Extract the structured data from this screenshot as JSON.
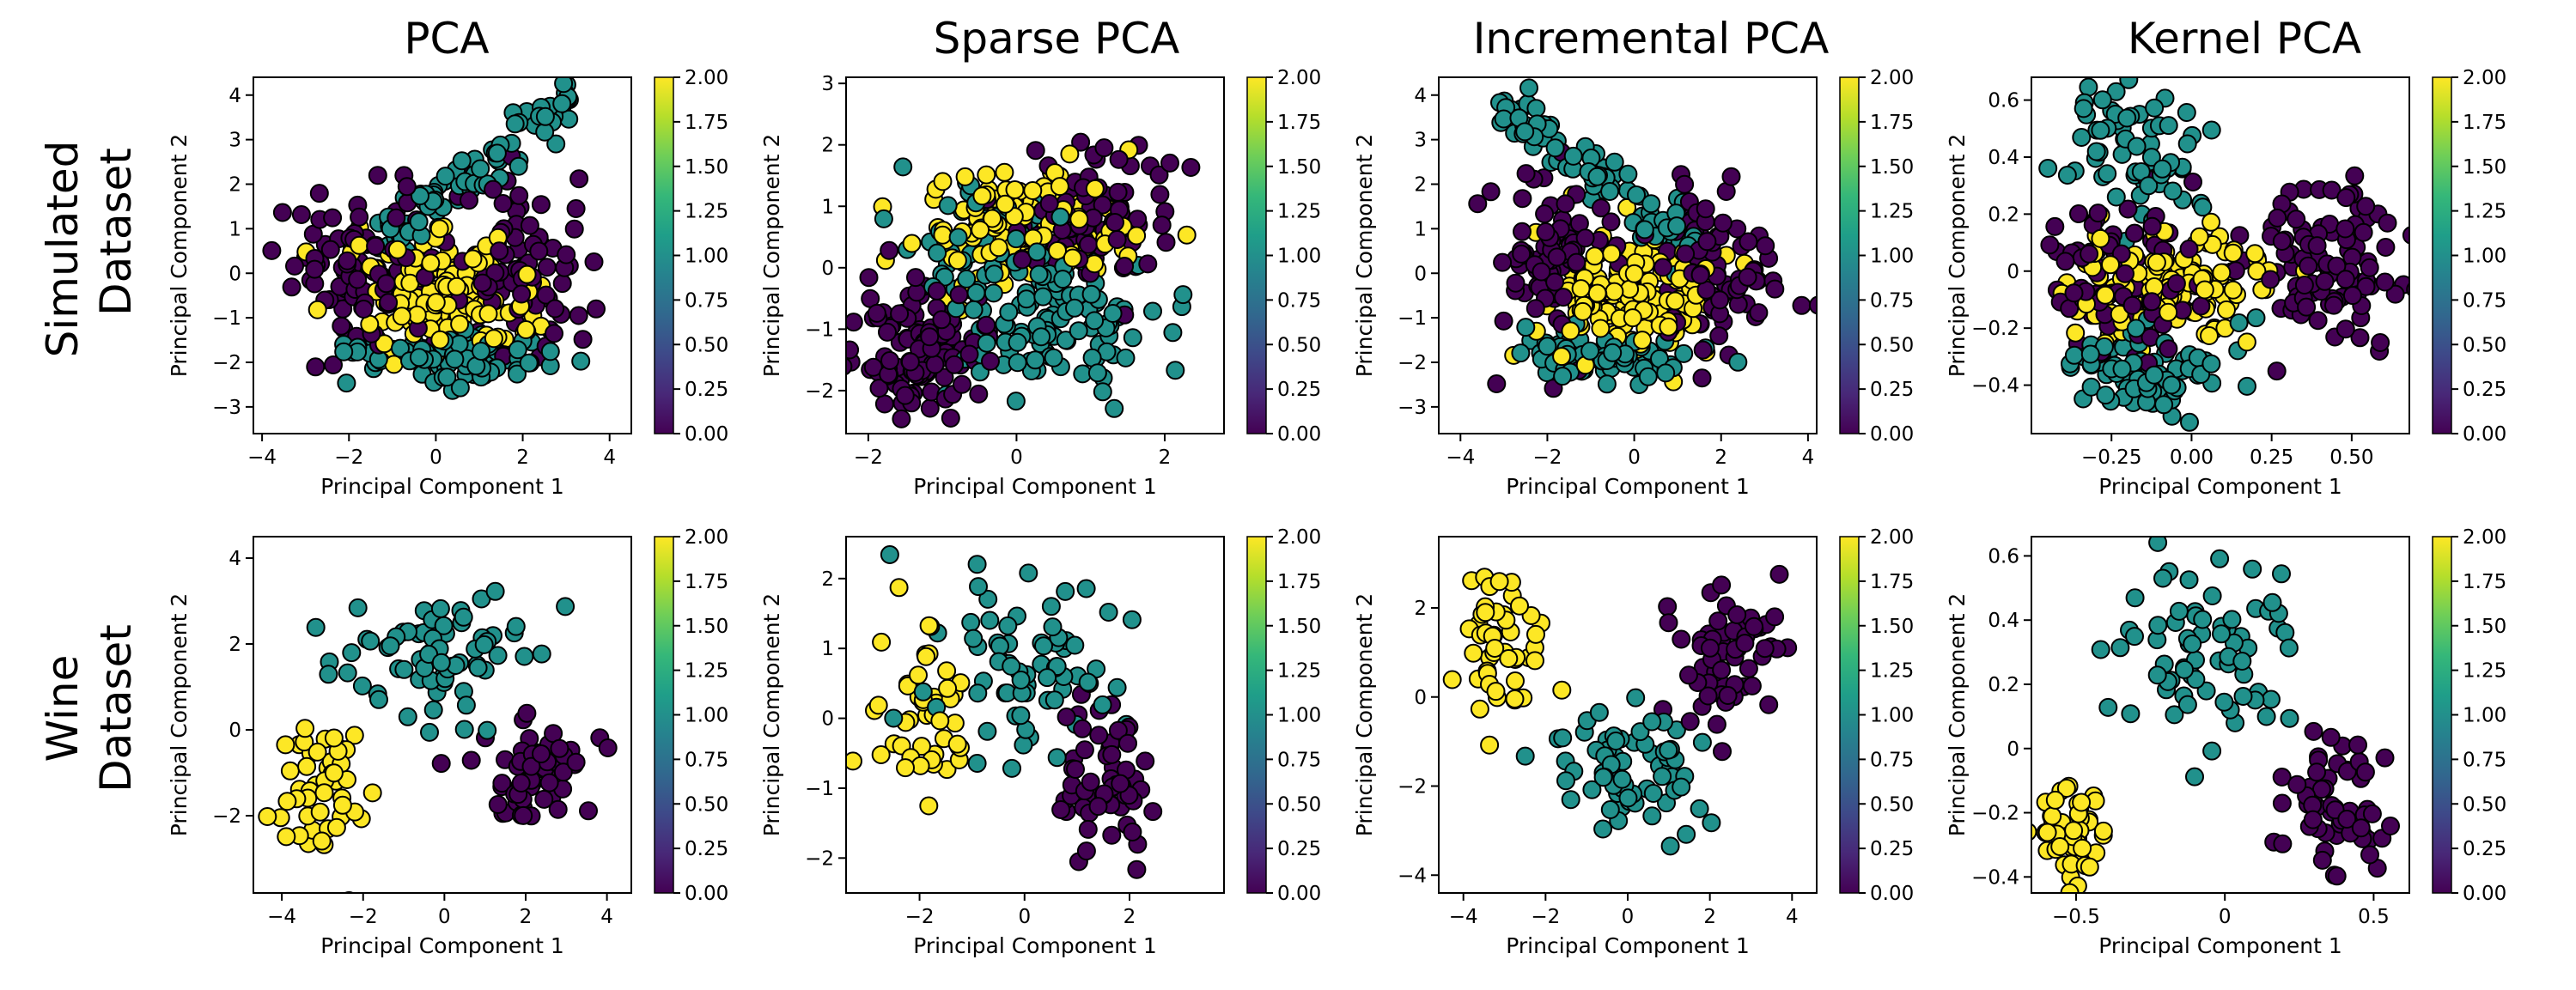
{
  "column_titles": [
    "PCA",
    "Sparse PCA",
    "Incremental PCA",
    "Kernel PCA"
  ],
  "row_labels": [
    [
      "Simulated",
      "Dataset"
    ],
    [
      "Wine",
      "Dataset"
    ]
  ],
  "colors": {
    "class_0": "#440154",
    "class_1": "#21918c",
    "class_2": "#fde725",
    "viridis_stops": [
      "#440154",
      "#482878",
      "#3e4989",
      "#31688e",
      "#26828e",
      "#1f9e89",
      "#35b779",
      "#6ece58",
      "#b5de2b",
      "#fde725"
    ]
  },
  "chart_data": [
    {
      "type": "scatter",
      "row": "Simulated Dataset",
      "title": "PCA",
      "xlabel": "Principal Component 1",
      "ylabel": "Principal Component 2",
      "xlim": [
        -4.2,
        4.5
      ],
      "ylim": [
        -3.6,
        4.4
      ],
      "xticks": [
        -4,
        -2,
        0,
        2,
        4
      ],
      "yticks": [
        -3,
        -2,
        -1,
        0,
        1,
        2,
        3,
        4
      ],
      "colorbar": {
        "min": 0.0,
        "max": 2.0,
        "ticks": [
          "0.00",
          "0.25",
          "0.50",
          "0.75",
          "1.00",
          "1.25",
          "1.50",
          "1.75",
          "2.00"
        ]
      },
      "clusters": [
        {
          "class": 1,
          "cx": 0.9,
          "cy": 2.3,
          "sx": 0.25,
          "sy": 0.35,
          "slope": 0.75,
          "xspan": [
            -1.4,
            3.1
          ],
          "n": 90
        },
        {
          "class": 1,
          "cx": 0.6,
          "cy": -1.85,
          "sx": 1.0,
          "sy": 0.3,
          "n": 90
        },
        {
          "class": 2,
          "cx": 0.0,
          "cy": -0.5,
          "sx": 0.95,
          "sy": 0.7,
          "n": 150
        },
        {
          "class": 0,
          "cx": -1.7,
          "cy": 0.15,
          "sx": 0.8,
          "sy": 0.95,
          "n": 90
        },
        {
          "class": 0,
          "cx": 1.9,
          "cy": 0.2,
          "sx": 0.8,
          "sy": 0.95,
          "n": 90
        }
      ]
    },
    {
      "type": "scatter",
      "row": "Simulated Dataset",
      "title": "Sparse PCA",
      "xlabel": "Principal Component 1",
      "ylabel": "Principal Component 2",
      "xlim": [
        -2.3,
        2.8
      ],
      "ylim": [
        -2.7,
        3.1
      ],
      "xticks": [
        -2,
        0,
        2
      ],
      "yticks": [
        -2,
        -1,
        0,
        1,
        2,
        3
      ],
      "colorbar": {
        "min": 0.0,
        "max": 2.0,
        "ticks": [
          "0.00",
          "0.25",
          "0.50",
          "0.75",
          "1.00",
          "1.25",
          "1.50",
          "1.75",
          "2.00"
        ]
      },
      "clusters": [
        {
          "class": 0,
          "cx": -1.3,
          "cy": -1.3,
          "sx": 0.4,
          "sy": 0.5,
          "n": 120
        },
        {
          "class": 0,
          "cx": 1.0,
          "cy": 0.9,
          "sx": 0.55,
          "sy": 0.55,
          "n": 100
        },
        {
          "class": 2,
          "cx": 0.1,
          "cy": 0.7,
          "sx": 0.7,
          "sy": 0.5,
          "n": 150
        },
        {
          "class": 1,
          "cx": 0.6,
          "cy": -0.9,
          "sx": 0.75,
          "sy": 0.55,
          "n": 110
        },
        {
          "class": 1,
          "cx": -0.3,
          "cy": 0.4,
          "sx": 0.6,
          "sy": 0.6,
          "n": 60
        }
      ]
    },
    {
      "type": "scatter",
      "row": "Simulated Dataset",
      "title": "Incremental PCA",
      "xlabel": "Principal Component 1",
      "ylabel": "Principal Component 2",
      "xlim": [
        -4.5,
        4.2
      ],
      "ylim": [
        -3.6,
        4.4
      ],
      "xticks": [
        -4,
        -2,
        0,
        2,
        4
      ],
      "yticks": [
        -3,
        -2,
        -1,
        0,
        1,
        2,
        3,
        4
      ],
      "colorbar": {
        "min": 0.0,
        "max": 2.0,
        "ticks": [
          "0.00",
          "0.25",
          "0.50",
          "0.75",
          "1.00",
          "1.25",
          "1.50",
          "1.75",
          "2.00"
        ]
      },
      "clusters": [
        {
          "class": 1,
          "cx": -0.9,
          "cy": 2.3,
          "sx": 0.25,
          "sy": 0.35,
          "slope": -0.75,
          "xspan": [
            -3.1,
            1.4
          ],
          "n": 90
        },
        {
          "class": 1,
          "cx": -0.6,
          "cy": -1.85,
          "sx": 1.0,
          "sy": 0.3,
          "n": 90
        },
        {
          "class": 2,
          "cx": 0.0,
          "cy": -0.5,
          "sx": 0.95,
          "sy": 0.7,
          "n": 150
        },
        {
          "class": 0,
          "cx": 1.7,
          "cy": 0.15,
          "sx": 0.8,
          "sy": 0.95,
          "n": 90
        },
        {
          "class": 0,
          "cx": -1.9,
          "cy": 0.2,
          "sx": 0.8,
          "sy": 0.95,
          "n": 90
        }
      ]
    },
    {
      "type": "scatter",
      "row": "Simulated Dataset",
      "title": "Kernel PCA",
      "xlabel": "Principal Component 1",
      "ylabel": "Principal Component 2",
      "xlim": [
        -0.5,
        0.68
      ],
      "ylim": [
        -0.57,
        0.68
      ],
      "xticks": [
        -0.25,
        0.0,
        0.25,
        0.5
      ],
      "xtick_labels": [
        "−0.25",
        "0.00",
        "0.25",
        "0.50"
      ],
      "yticks": [
        -0.4,
        -0.2,
        0.0,
        0.2,
        0.4,
        0.6
      ],
      "colorbar": {
        "min": 0.0,
        "max": 2.0,
        "ticks": [
          "0.00",
          "0.25",
          "0.50",
          "0.75",
          "1.00",
          "1.25",
          "1.50",
          "1.75",
          "2.00"
        ]
      },
      "clusters": [
        {
          "class": 1,
          "cx": -0.18,
          "cy": 0.42,
          "sx": 0.1,
          "sy": 0.13,
          "n": 70
        },
        {
          "class": 1,
          "cx": -0.15,
          "cy": -0.35,
          "sx": 0.12,
          "sy": 0.1,
          "n": 80
        },
        {
          "class": 2,
          "cx": -0.05,
          "cy": -0.05,
          "sx": 0.15,
          "sy": 0.1,
          "n": 120
        },
        {
          "class": 0,
          "cx": -0.25,
          "cy": -0.02,
          "sx": 0.12,
          "sy": 0.12,
          "n": 90
        },
        {
          "class": 0,
          "cx": 0.42,
          "cy": 0.05,
          "sx": 0.12,
          "sy": 0.15,
          "n": 100
        }
      ]
    },
    {
      "type": "scatter",
      "row": "Wine Dataset",
      "title": "",
      "xlabel": "Principal Component 1",
      "ylabel": "Principal Component 2",
      "xlim": [
        -4.7,
        4.6
      ],
      "ylim": [
        -3.8,
        4.5
      ],
      "xticks": [
        -4,
        -2,
        0,
        2,
        4
      ],
      "yticks": [
        -2,
        0,
        2,
        4
      ],
      "colorbar": {
        "min": 0.0,
        "max": 2.0,
        "ticks": [
          "0.00",
          "0.25",
          "0.50",
          "0.75",
          "1.00",
          "1.25",
          "1.50",
          "1.75",
          "2.00"
        ]
      },
      "clusters": [
        {
          "class": 2,
          "cx": -3.0,
          "cy": -1.3,
          "sx": 0.55,
          "sy": 0.8,
          "n": 48
        },
        {
          "class": 1,
          "cx": -0.2,
          "cy": 1.7,
          "sx": 1.2,
          "sy": 0.8,
          "n": 71
        },
        {
          "class": 0,
          "cx": 2.3,
          "cy": -1.0,
          "sx": 0.7,
          "sy": 0.7,
          "n": 59
        }
      ]
    },
    {
      "type": "scatter",
      "row": "Wine Dataset",
      "title": "",
      "xlabel": "Principal Component 1",
      "ylabel": "Principal Component 2",
      "xlim": [
        -3.4,
        3.8
      ],
      "ylim": [
        -2.5,
        2.6
      ],
      "xticks": [
        -2,
        0,
        2
      ],
      "yticks": [
        -2,
        -1,
        0,
        1,
        2
      ],
      "colorbar": {
        "min": 0.0,
        "max": 2.0,
        "ticks": [
          "0.00",
          "0.25",
          "0.50",
          "0.75",
          "1.00",
          "1.25",
          "1.50",
          "1.75",
          "2.00"
        ]
      },
      "clusters": [
        {
          "class": 2,
          "cx": -1.8,
          "cy": 0.0,
          "sx": 0.45,
          "sy": 0.65,
          "n": 48
        },
        {
          "class": 1,
          "cx": 0.0,
          "cy": 0.8,
          "sx": 1.0,
          "sy": 0.6,
          "n": 71
        },
        {
          "class": 0,
          "cx": 1.6,
          "cy": -0.9,
          "sx": 0.5,
          "sy": 0.55,
          "n": 59
        }
      ]
    },
    {
      "type": "scatter",
      "row": "Wine Dataset",
      "title": "",
      "xlabel": "Principal Component 1",
      "ylabel": "Principal Component 2",
      "xlim": [
        -4.6,
        4.6
      ],
      "ylim": [
        -4.4,
        3.6
      ],
      "xticks": [
        -4,
        -2,
        0,
        2,
        4
      ],
      "yticks": [
        -4,
        -2,
        0,
        2
      ],
      "colorbar": {
        "min": 0.0,
        "max": 2.0,
        "ticks": [
          "0.00",
          "0.25",
          "0.50",
          "0.75",
          "1.00",
          "1.25",
          "1.50",
          "1.75",
          "2.00"
        ]
      },
      "clusters": [
        {
          "class": 2,
          "cx": -3.0,
          "cy": 1.1,
          "sx": 0.5,
          "sy": 0.8,
          "n": 48
        },
        {
          "class": 1,
          "cx": 0.0,
          "cy": -1.6,
          "sx": 1.0,
          "sy": 0.7,
          "n": 71
        },
        {
          "class": 0,
          "cx": 2.3,
          "cy": 1.0,
          "sx": 0.7,
          "sy": 0.8,
          "n": 59
        }
      ]
    },
    {
      "type": "scatter",
      "row": "Wine Dataset",
      "title": "",
      "xlabel": "Principal Component 1",
      "ylabel": "Principal Component 2",
      "xlim": [
        -0.65,
        0.62
      ],
      "ylim": [
        -0.45,
        0.66
      ],
      "xticks": [
        -0.5,
        0.0,
        0.5
      ],
      "yticks": [
        -0.4,
        -0.2,
        0.0,
        0.2,
        0.4,
        0.6
      ],
      "colorbar": {
        "min": 0.0,
        "max": 2.0,
        "ticks": [
          "0.00",
          "0.25",
          "0.50",
          "0.75",
          "1.00",
          "1.25",
          "1.50",
          "1.75",
          "2.00"
        ]
      },
      "clusters": [
        {
          "class": 2,
          "cx": -0.5,
          "cy": -0.25,
          "sx": 0.05,
          "sy": 0.08,
          "n": 48
        },
        {
          "class": 1,
          "cx": -0.05,
          "cy": 0.3,
          "sx": 0.15,
          "sy": 0.15,
          "n": 71
        },
        {
          "class": 0,
          "cx": 0.38,
          "cy": -0.15,
          "sx": 0.1,
          "sy": 0.12,
          "n": 59
        }
      ]
    }
  ]
}
